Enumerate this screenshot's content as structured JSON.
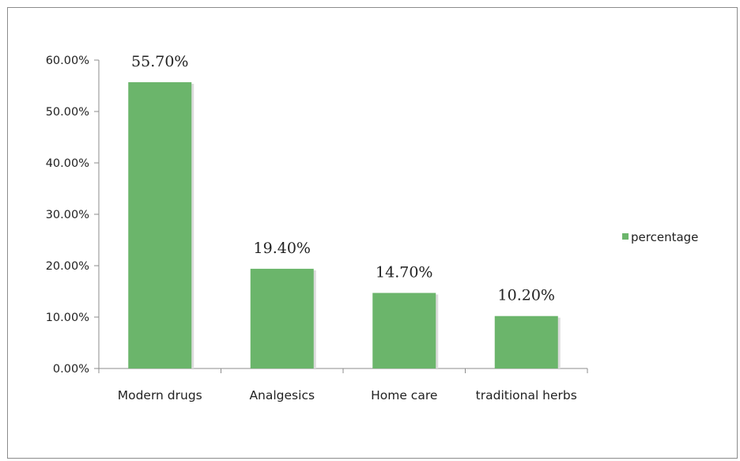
{
  "chart_data": {
    "type": "bar",
    "categories": [
      "Modern drugs",
      "Analgesics",
      "Home care",
      "traditional herbs"
    ],
    "series": [
      {
        "name": "percentage",
        "values": [
          55.7,
          19.4,
          14.7,
          10.2
        ],
        "color": "#6bb56b"
      }
    ],
    "data_labels": [
      "55.70%",
      "19.40%",
      "14.70%",
      "10.20%"
    ],
    "ylim": [
      0,
      60
    ],
    "y_ticks": [
      0,
      10,
      20,
      30,
      40,
      50,
      60
    ],
    "y_tick_labels": [
      "0.00%",
      "10.00%",
      "20.00%",
      "30.00%",
      "40.00%",
      "50.00%",
      "60.00%"
    ],
    "grid": false,
    "legend": {
      "position": "right",
      "labels": [
        "percentage"
      ]
    },
    "colors": {
      "bar": "#6bb56b",
      "bar_shadow": "#dcdcdc",
      "axis": "#8c8c8c",
      "frame": "#8c8c8c"
    }
  }
}
